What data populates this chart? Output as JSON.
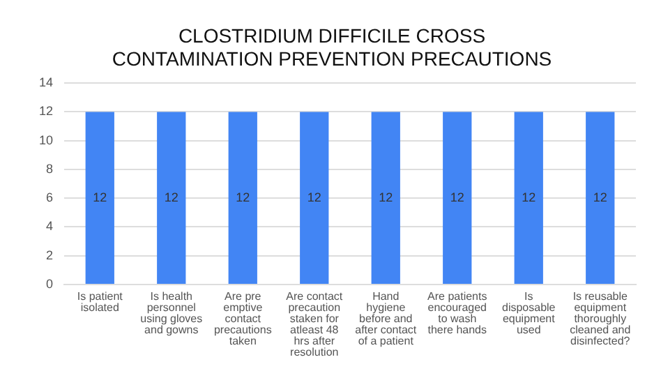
{
  "chart_data": {
    "type": "bar",
    "title": "CLOSTRIDIUM DIFFICILE CROSS CONTAMINATION PREVENTION PRECAUTIONS",
    "categories": [
      "Is patient isolated",
      "Is health personnel using gloves and gowns",
      "Are pre emptive contact precautions taken",
      "Are contact precaution staken for atleast 48 hrs after resolution",
      "Hand hygiene before and after contact of a patient",
      "Are patients encouraged to wash there hands",
      "Is disposable equipment used",
      "Is reusable equipment thoroughly cleaned and disinfected?"
    ],
    "values": [
      12,
      12,
      12,
      12,
      12,
      12,
      12,
      12
    ],
    "color": "#4285f4",
    "ylim": [
      0,
      14
    ],
    "yticks": [
      0,
      2,
      4,
      6,
      8,
      10,
      12,
      14
    ],
    "grid": "y",
    "data_labels": true
  }
}
